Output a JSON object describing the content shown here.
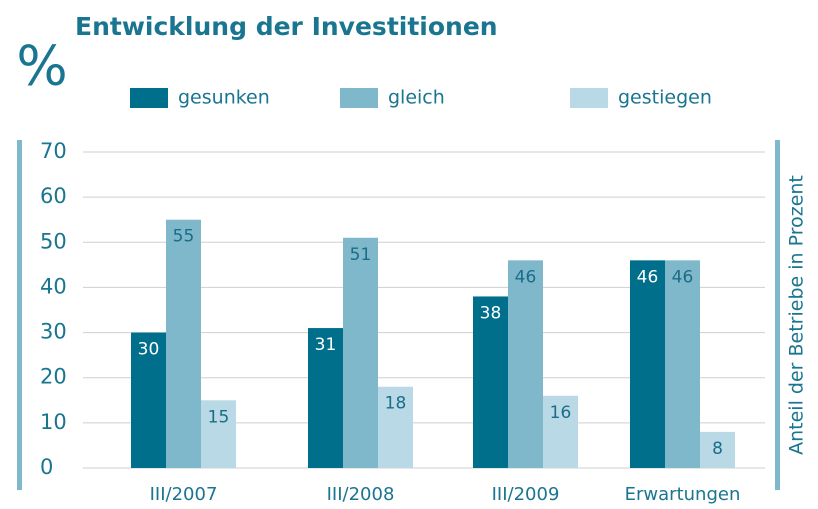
{
  "chart_data": {
    "type": "bar",
    "title": "Entwicklung der Investitionen",
    "unit": "%",
    "ylabel": "Anteil der Betriebe in Prozent",
    "categories": [
      "III/2007",
      "III/2008",
      "III/2009",
      "Erwartungen"
    ],
    "series": [
      {
        "name": "gesunken",
        "color": "#006f8c",
        "values": [
          30,
          31,
          38,
          46
        ]
      },
      {
        "name": "gleich",
        "color": "#7fb8cb",
        "values": [
          55,
          51,
          46,
          46
        ]
      },
      {
        "name": "gestiegen",
        "color": "#b8d9e5",
        "values": [
          15,
          18,
          16,
          8
        ]
      }
    ],
    "ylim": [
      0,
      70
    ],
    "yticks": [
      0,
      10,
      20,
      30,
      40,
      50,
      60,
      70
    ],
    "grid": true
  }
}
